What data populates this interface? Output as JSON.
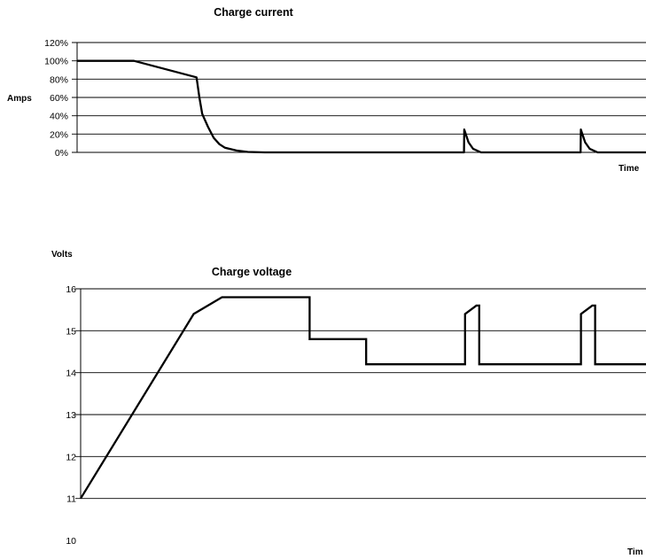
{
  "chart_data": [
    {
      "type": "line",
      "title": "Charge current",
      "ylabel": "Amps",
      "xlabel": "Time",
      "ylim": [
        0,
        120
      ],
      "y_unit": "%",
      "yticks": [
        "0%",
        "20%",
        "40%",
        "60%",
        "80%",
        "100%",
        "120%"
      ],
      "grid": true,
      "series": [
        {
          "points": [
            [
              0,
              100
            ],
            [
              10,
              100
            ],
            [
              21,
              82
            ],
            [
              21.5,
              60
            ],
            [
              22,
              42
            ],
            [
              23,
              28
            ],
            [
              24,
              16
            ],
            [
              25,
              9
            ],
            [
              26,
              5
            ],
            [
              28,
              2
            ],
            [
              30,
              0.5
            ],
            [
              33,
              0
            ],
            [
              68,
              0
            ],
            [
              68.05,
              25
            ],
            [
              68.8,
              11
            ],
            [
              69.6,
              4
            ],
            [
              71,
              0
            ],
            [
              88.5,
              0
            ],
            [
              88.55,
              25
            ],
            [
              89.3,
              11
            ],
            [
              90.1,
              4
            ],
            [
              91.5,
              0
            ],
            [
              100,
              0
            ]
          ]
        }
      ]
    },
    {
      "type": "line",
      "title": "Charge voltage",
      "ylabel": "Volts",
      "xlabel": "Tim",
      "ylim": [
        10,
        16
      ],
      "yticks": [
        "10",
        "11",
        "12",
        "13",
        "14",
        "15",
        "16"
      ],
      "grid": true,
      "series": [
        {
          "points": [
            [
              0,
              11
            ],
            [
              20,
              15.4
            ],
            [
              25,
              15.8
            ],
            [
              40.5,
              15.8
            ],
            [
              40.5,
              14.8
            ],
            [
              50.5,
              14.8
            ],
            [
              50.5,
              14.2
            ],
            [
              68,
              14.2
            ],
            [
              68,
              15.4
            ],
            [
              70,
              15.6
            ],
            [
              70.5,
              15.6
            ],
            [
              70.5,
              14.2
            ],
            [
              88.5,
              14.2
            ],
            [
              88.5,
              15.4
            ],
            [
              90.5,
              15.6
            ],
            [
              91,
              15.6
            ],
            [
              91,
              14.2
            ],
            [
              100,
              14.2
            ]
          ]
        }
      ]
    }
  ]
}
